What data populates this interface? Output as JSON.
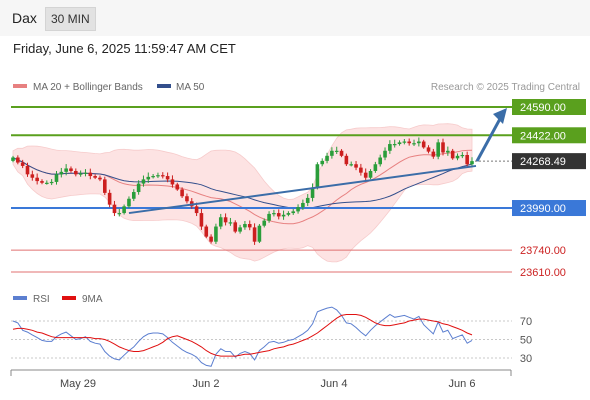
{
  "header": {
    "symbol": "Dax",
    "timeframe": "30 MIN",
    "datetime": "Friday, June 6, 2025 11:59:47 AM CET"
  },
  "legend": {
    "ma20_bb": "MA 20 + Bollinger Bands",
    "ma50": "MA 50",
    "credit": "Research © 2025 Trading Central"
  },
  "rsi_legend": {
    "rsi": "RSI",
    "ma9": "9MA"
  },
  "colors": {
    "resistance": "#5aa01e",
    "support_blue": "#3a78d8",
    "support_red": "#e07070",
    "current": "#333333",
    "ma20": "#e78080",
    "bb_fill": "#fde0e0",
    "ma50": "#334f8c",
    "bull": "#2a9d3a",
    "bear": "#cc1f1f",
    "arrow": "#3b6da8",
    "rsi": "#5c7fd0",
    "rsi_ma": "#e01010"
  },
  "chart_data": [
    {
      "type": "candlestick",
      "x_labels": [
        "May 29",
        "Jun 2",
        "Jun 4",
        "Jun 6"
      ],
      "ylim": [
        23500,
        24650
      ],
      "current_price": "24268.49",
      "levels": [
        {
          "value": 24590,
          "label": "24590.00",
          "kind": "resistance",
          "target": true
        },
        {
          "value": 24422,
          "label": "24422.00",
          "kind": "resistance"
        },
        {
          "value": 23990,
          "label": "23990.00",
          "kind": "pivot"
        },
        {
          "value": 23740,
          "label": "23740.00",
          "kind": "support"
        },
        {
          "value": 23610,
          "label": "23610.00",
          "kind": "support"
        }
      ],
      "closes": [
        24290,
        24260,
        24240,
        24190,
        24170,
        24150,
        24140,
        24140,
        24145,
        24190,
        24205,
        24225,
        24210,
        24190,
        24195,
        24200,
        24180,
        24170,
        24160,
        24080,
        24010,
        23960,
        23960,
        24000,
        24045,
        24085,
        24135,
        24160,
        24175,
        24180,
        24185,
        24180,
        24160,
        24130,
        24100,
        24060,
        24030,
        24000,
        23960,
        23880,
        23820,
        23790,
        23880,
        23935,
        23905,
        23905,
        23850,
        23875,
        23895,
        23875,
        23790,
        23885,
        23915,
        23955,
        23960,
        23940,
        23950,
        23960,
        23970,
        23995,
        24020,
        24050,
        24110,
        24250,
        24270,
        24300,
        24330,
        24330,
        24300,
        24250,
        24250,
        24230,
        24200,
        24170,
        24210,
        24250,
        24290,
        24330,
        24370,
        24370,
        24380,
        24385,
        24375,
        24375,
        24385,
        24350,
        24325,
        24295,
        24380,
        24320,
        24330,
        24285,
        24300,
        24305,
        24250,
        24268.49
      ],
      "trendline": {
        "from": [
          24,
          23960
        ],
        "to": [
          96,
          24240
        ]
      },
      "overbought": 70,
      "oversold": 30
    },
    {
      "type": "line",
      "ylim": [
        15,
        90
      ],
      "y_ticks": [
        70,
        50,
        30
      ],
      "series": [
        {
          "name": "RSI",
          "values": [
            70,
            68,
            60,
            58,
            55,
            52,
            49,
            48,
            48,
            53,
            56,
            58,
            54,
            50,
            51,
            53,
            48,
            46,
            45,
            37,
            32,
            29,
            28,
            33,
            38,
            42,
            48,
            53,
            56,
            57,
            57,
            56,
            52,
            47,
            43,
            39,
            36,
            34,
            31,
            25,
            22,
            21,
            34,
            40,
            37,
            37,
            31,
            35,
            37,
            35,
            28,
            38,
            42,
            47,
            48,
            46,
            47,
            49,
            50,
            53,
            56,
            60,
            67,
            80,
            82,
            84,
            85,
            82,
            76,
            68,
            67,
            63,
            58,
            54,
            60,
            65,
            69,
            73,
            77,
            74,
            75,
            76,
            74,
            72,
            75,
            66,
            61,
            56,
            69,
            58,
            60,
            51,
            53,
            55,
            46,
            49
          ]
        },
        {
          "name": "9MA",
          "values": [
            61,
            62,
            62,
            61,
            60,
            58,
            57,
            55,
            53,
            52,
            52,
            52,
            52,
            52,
            52,
            52,
            52,
            51,
            51,
            50,
            48,
            45,
            42,
            40,
            38,
            37,
            37,
            38,
            40,
            42,
            44,
            47,
            51,
            53,
            54,
            52,
            50,
            48,
            45,
            42,
            38,
            35,
            33,
            32,
            32,
            32,
            32,
            33,
            34,
            34,
            35,
            36,
            37,
            38,
            40,
            41,
            42,
            44,
            45,
            47,
            49,
            51,
            54,
            57,
            61,
            65,
            69,
            73,
            76,
            77,
            77,
            77,
            76,
            74,
            71,
            68,
            66,
            65,
            65,
            66,
            67,
            68,
            70,
            71,
            72,
            72,
            71,
            70,
            69,
            67,
            66,
            64,
            62,
            60,
            57,
            55
          ]
        }
      ]
    }
  ]
}
